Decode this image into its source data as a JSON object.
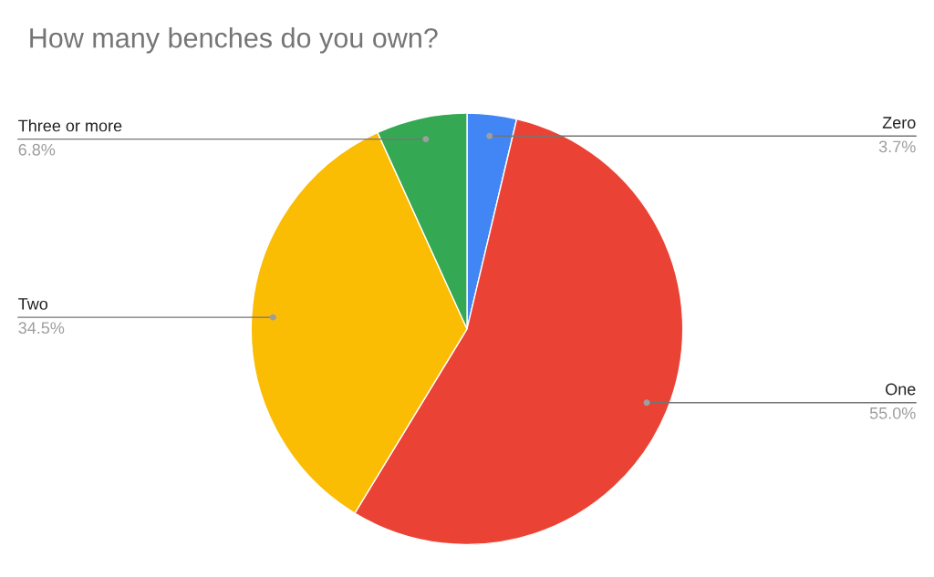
{
  "chart_data": {
    "type": "pie",
    "title": "How many benches do you own?",
    "categories": [
      "Zero",
      "One",
      "Two",
      "Three or more"
    ],
    "values": [
      3.7,
      55.0,
      34.5,
      6.8
    ],
    "value_labels": [
      "3.7%",
      "55.0%",
      "34.5%",
      "6.8%"
    ],
    "colors": [
      "#4285f4",
      "#ea4335",
      "#fbbc04",
      "#34a853"
    ],
    "legend": false
  }
}
